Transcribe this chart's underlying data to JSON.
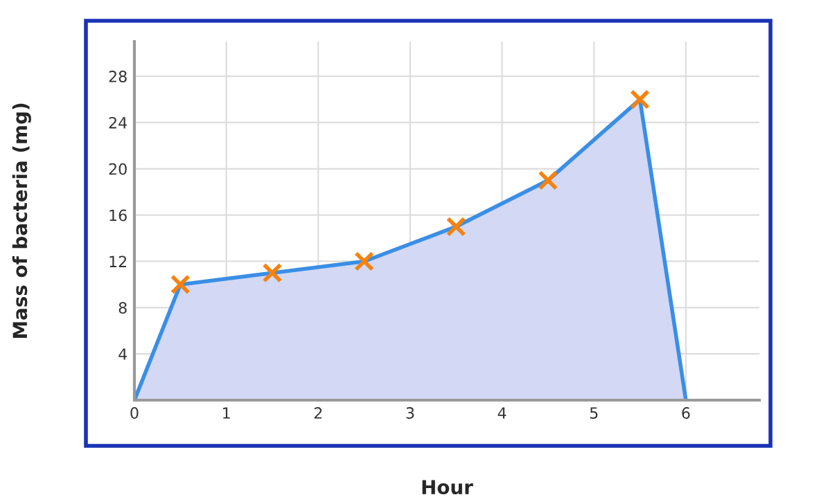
{
  "chart_data": {
    "type": "area",
    "xlabel": "Hour",
    "ylabel": "Mass of bacteria (mg)",
    "xlim": [
      0,
      6.8
    ],
    "ylim": [
      0,
      31
    ],
    "xticks": [
      0,
      1,
      2,
      3,
      4,
      5,
      6
    ],
    "yticks": [
      4,
      8,
      12,
      16,
      20,
      24,
      28
    ],
    "grid": true,
    "legend": false,
    "series": [
      {
        "type": "area",
        "color": "#3a8ee6",
        "marker": "none",
        "x": [
          0,
          0.5,
          1.5,
          2.5,
          3.5,
          4.5,
          5.5,
          6
        ],
        "values": [
          0,
          10,
          11,
          12,
          15,
          19,
          26,
          0
        ]
      },
      {
        "type": "scatter",
        "color": "#f5820f",
        "marker": "cross",
        "x": [
          0.5,
          1.5,
          2.5,
          3.5,
          4.5,
          5.5
        ],
        "values": [
          10,
          11,
          12,
          15,
          19,
          26
        ]
      }
    ]
  }
}
